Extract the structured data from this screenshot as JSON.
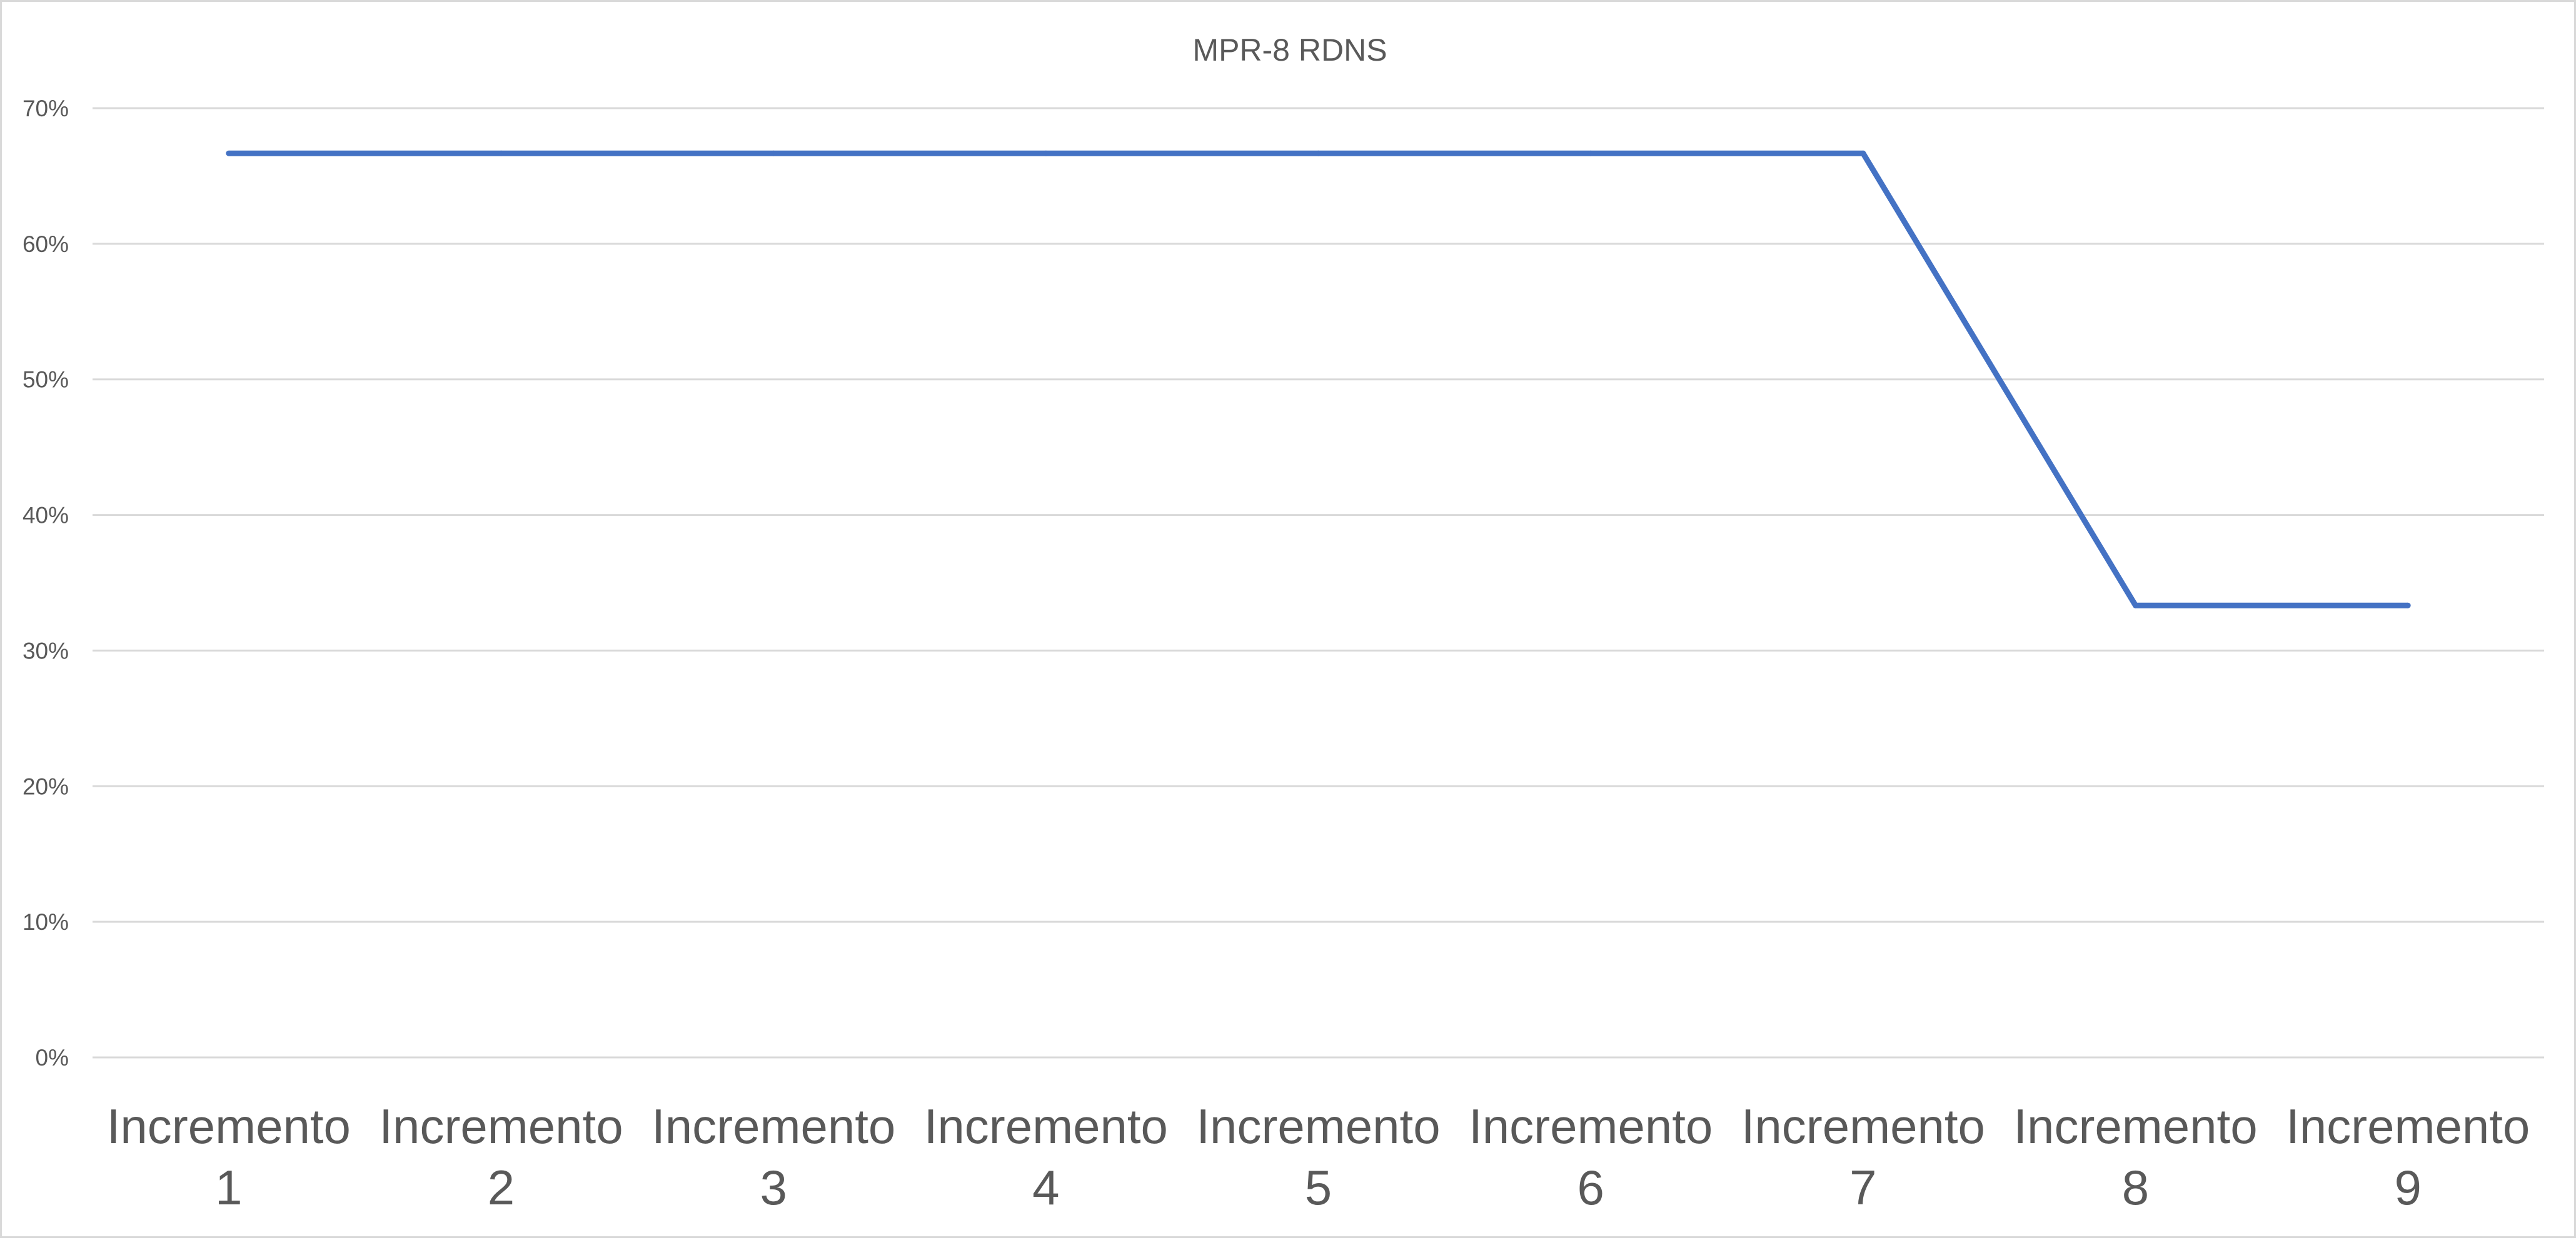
{
  "chart_data": {
    "type": "line",
    "title": "MPR-8 RDNS",
    "xlabel": "",
    "ylabel": "",
    "categories": [
      [
        "Incremento",
        "1"
      ],
      [
        "Incremento",
        "2"
      ],
      [
        "Incremento",
        "3"
      ],
      [
        "Incremento",
        "4"
      ],
      [
        "Incremento",
        "5"
      ],
      [
        "Incremento",
        "6"
      ],
      [
        "Incremento",
        "7"
      ],
      [
        "Incremento",
        "8"
      ],
      [
        "Incremento",
        "9"
      ]
    ],
    "series": [
      {
        "values": [
          66.67,
          66.67,
          66.67,
          66.67,
          66.67,
          66.67,
          66.67,
          33.33,
          33.33
        ],
        "color": "#4472c4"
      }
    ],
    "ylim": [
      0,
      70
    ],
    "y_ticks": [
      0,
      10,
      20,
      30,
      40,
      50,
      60,
      70
    ],
    "y_tick_labels": [
      "0%",
      "10%",
      "20%",
      "30%",
      "40%",
      "50%",
      "60%",
      "70%"
    ],
    "grid": true,
    "legend": "none"
  }
}
